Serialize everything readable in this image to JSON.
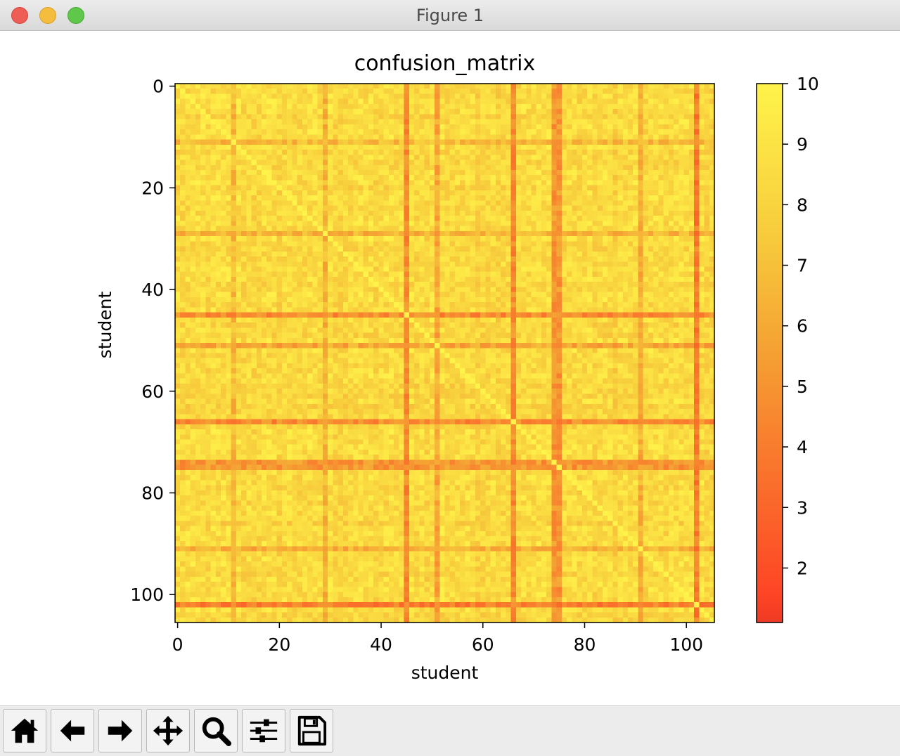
{
  "window": {
    "title": "Figure 1"
  },
  "toolbar": {
    "buttons": [
      {
        "name": "home-button",
        "icon": "home-icon"
      },
      {
        "name": "back-button",
        "icon": "arrow-left-icon"
      },
      {
        "name": "forward-button",
        "icon": "arrow-right-icon"
      },
      {
        "name": "pan-button",
        "icon": "move-icon"
      },
      {
        "name": "zoom-button",
        "icon": "magnifier-icon"
      },
      {
        "name": "configure-subplots-button",
        "icon": "sliders-icon"
      },
      {
        "name": "save-button",
        "icon": "floppy-disk-icon"
      }
    ]
  },
  "chart_data": {
    "type": "heatmap",
    "title": "confusion_matrix",
    "xlabel": "student",
    "ylabel": "student",
    "size": 106,
    "x_ticks": [
      0,
      20,
      40,
      60,
      80,
      100
    ],
    "y_ticks": [
      0,
      20,
      40,
      60,
      80,
      100
    ],
    "x_tick_labels": [
      "0",
      "20",
      "40",
      "60",
      "80",
      "100"
    ],
    "y_tick_labels": [
      "0",
      "20",
      "40",
      "60",
      "80",
      "100"
    ],
    "colorbar": {
      "ticks": [
        2,
        3,
        4,
        5,
        6,
        7,
        8,
        9,
        10
      ],
      "tick_labels": [
        "2",
        "3",
        "4",
        "5",
        "6",
        "7",
        "8",
        "9",
        "10"
      ],
      "vmin": 1.1,
      "vmax": 10
    },
    "colormap": "autumn",
    "colormap_stops": [
      "#ee3a24",
      "#ff3a24",
      "#f5a033",
      "#f7cc3c",
      "#fff34a"
    ],
    "diagonal_value": 10,
    "typical_value_range": [
      6.5,
      9.5
    ],
    "low_score_students": [
      {
        "student": 11,
        "mean": 6.3
      },
      {
        "student": 29,
        "mean": 6.0
      },
      {
        "student": 45,
        "mean": 4.2
      },
      {
        "student": 51,
        "mean": 5.5
      },
      {
        "student": 66,
        "mean": 4.2
      },
      {
        "student": 74,
        "mean": 4.7
      },
      {
        "student": 75,
        "mean": 4.7
      },
      {
        "student": 91,
        "mean": 5.8
      },
      {
        "student": 102,
        "mean": 3.6
      }
    ]
  }
}
